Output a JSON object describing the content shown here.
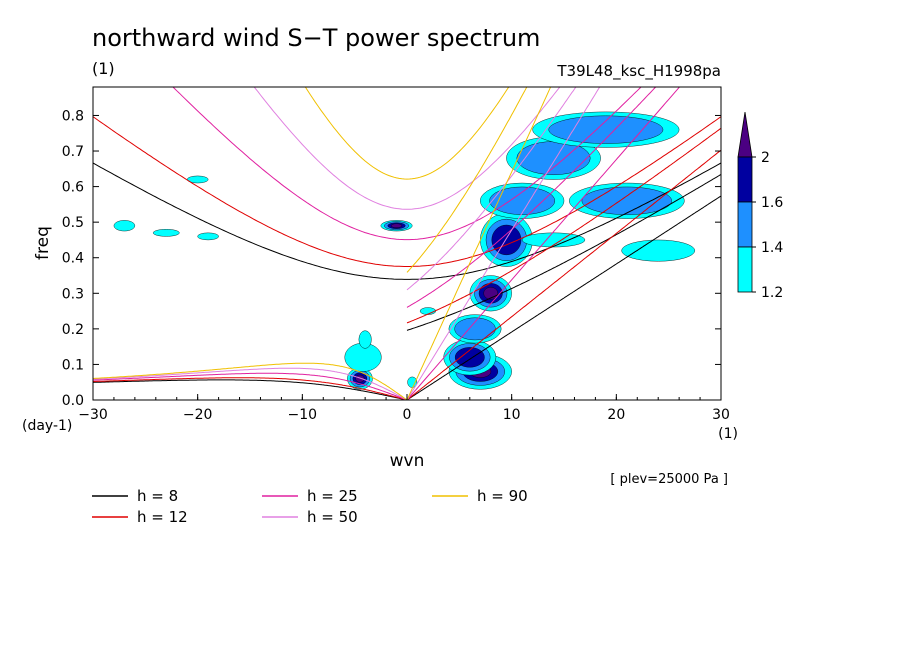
{
  "chart_data": {
    "type": "contour",
    "title": "northward wind S−T power spectrum",
    "subtitle_left": "(1)",
    "subtitle_right": "T39L48_ksc_H1998pa",
    "xlabel": "wvn",
    "ylabel": "freq",
    "x_unit_label": "(1)",
    "y_unit_label": "(day-1)",
    "level_note": "[ plev=25000 Pa ]",
    "xlim": [
      -30,
      30
    ],
    "ylim": [
      0,
      0.88
    ],
    "xticks": [
      -30,
      -20,
      -10,
      0,
      10,
      20,
      30
    ],
    "xtick_labels": [
      "−30",
      "−20",
      "−10",
      "0",
      "10",
      "20",
      "30"
    ],
    "yticks": [
      0,
      0.1,
      0.2,
      0.3,
      0.4,
      0.5,
      0.6,
      0.7,
      0.8
    ],
    "ytick_labels": [
      "0.0",
      "0.1",
      "0.2",
      "0.3",
      "0.4",
      "0.5",
      "0.6",
      "0.7",
      "0.8"
    ],
    "colorbar": {
      "levels": [
        1.2,
        1.4,
        1.6,
        2
      ],
      "level_labels": [
        "1.2",
        "1.4",
        "1.6",
        "2"
      ],
      "colors": [
        "#00ffff",
        "#1e90ff",
        "#0000a0",
        "#4b0082"
      ]
    },
    "dispersion_curves": [
      {
        "label": "h =  8",
        "h": 8,
        "color": "#000000"
      },
      {
        "label": "h = 12",
        "h": 12,
        "color": "#e00000"
      },
      {
        "label": "h = 25",
        "h": 25,
        "color": "#e020a0"
      },
      {
        "label": "h = 50",
        "h": 50,
        "color": "#e080e0"
      },
      {
        "label": "h = 90",
        "h": 90,
        "color": "#f0c000"
      }
    ],
    "contour_blobs": [
      {
        "x": 0.5,
        "y": 0.05,
        "w": 0.9,
        "h": 0.03,
        "lvl": 1
      },
      {
        "x": 7,
        "y": 0.08,
        "w": 6,
        "h": 0.1,
        "lvl": 4
      },
      {
        "x": 6,
        "y": 0.12,
        "w": 5,
        "h": 0.1,
        "lvl": 3
      },
      {
        "x": 6.5,
        "y": 0.2,
        "w": 5,
        "h": 0.08,
        "lvl": 2
      },
      {
        "x": 8,
        "y": 0.3,
        "w": 4,
        "h": 0.1,
        "lvl": 4
      },
      {
        "x": 9.5,
        "y": 0.45,
        "w": 5,
        "h": 0.15,
        "lvl": 3
      },
      {
        "x": 11,
        "y": 0.56,
        "w": 8,
        "h": 0.1,
        "lvl": 2
      },
      {
        "x": 14,
        "y": 0.68,
        "w": 9,
        "h": 0.12,
        "lvl": 2
      },
      {
        "x": 19,
        "y": 0.76,
        "w": 14,
        "h": 0.1,
        "lvl": 2
      },
      {
        "x": 21,
        "y": 0.56,
        "w": 11,
        "h": 0.1,
        "lvl": 2
      },
      {
        "x": 24,
        "y": 0.42,
        "w": 7,
        "h": 0.06,
        "lvl": 1
      },
      {
        "x": 14,
        "y": 0.45,
        "w": 6,
        "h": 0.04,
        "lvl": 1
      },
      {
        "x": -4.5,
        "y": 0.06,
        "w": 2.4,
        "h": 0.06,
        "lvl": 4
      },
      {
        "x": -4.2,
        "y": 0.12,
        "w": 3.5,
        "h": 0.08,
        "lvl": 1
      },
      {
        "x": -4,
        "y": 0.17,
        "w": 1.2,
        "h": 0.05,
        "lvl": 1
      },
      {
        "x": -1,
        "y": 0.49,
        "w": 3,
        "h": 0.03,
        "lvl": 4
      },
      {
        "x": -27,
        "y": 0.49,
        "w": 2,
        "h": 0.03,
        "lvl": 1
      },
      {
        "x": -23,
        "y": 0.47,
        "w": 2.5,
        "h": 0.02,
        "lvl": 1
      },
      {
        "x": -19,
        "y": 0.46,
        "w": 2,
        "h": 0.02,
        "lvl": 1
      },
      {
        "x": -20,
        "y": 0.62,
        "w": 2,
        "h": 0.02,
        "lvl": 1
      },
      {
        "x": 2,
        "y": 0.25,
        "w": 1.5,
        "h": 0.02,
        "lvl": 1
      }
    ]
  },
  "legend_items": [
    {
      "label": "h =  8",
      "color": "#000000"
    },
    {
      "label": "h = 12",
      "color": "#e00000"
    },
    {
      "label": "h = 25",
      "color": "#e020a0"
    },
    {
      "label": "h = 50",
      "color": "#e080e0"
    },
    {
      "label": "h = 90",
      "color": "#f0c000"
    }
  ]
}
